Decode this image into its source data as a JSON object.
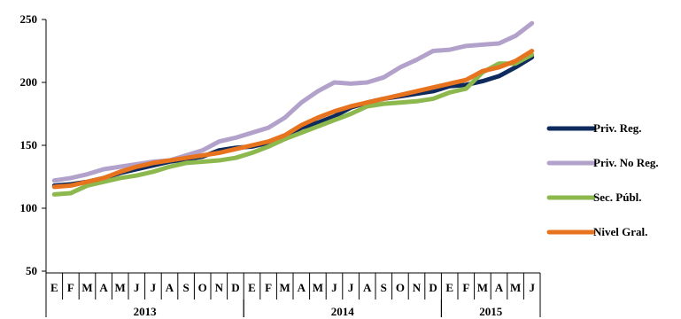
{
  "chart_data": {
    "type": "line",
    "title": "",
    "xlabel": "",
    "ylabel": "",
    "ylim": [
      50,
      250
    ],
    "yticks": [
      "50",
      "100",
      "150",
      "200",
      "250"
    ],
    "grid": false,
    "legend_position": "right",
    "month_labels": [
      "E",
      "F",
      "M",
      "A",
      "M",
      "J",
      "J",
      "A",
      "S",
      "O",
      "N",
      "D",
      "E",
      "F",
      "M",
      "A",
      "M",
      "J",
      "J",
      "A",
      "S",
      "O",
      "N",
      "D",
      "E",
      "F",
      "M",
      "A",
      "M",
      "J"
    ],
    "years": [
      {
        "label": "2013",
        "start": 0,
        "end": 11
      },
      {
        "label": "2014",
        "start": 12,
        "end": 23
      },
      {
        "label": "2015",
        "start": 24,
        "end": 29
      }
    ],
    "series": [
      {
        "name": "Priv. Reg.",
        "color": "#0f2a5c",
        "values": [
          118,
          119,
          121,
          124,
          128,
          131,
          134,
          137,
          139,
          141,
          146,
          148,
          149,
          152,
          157,
          164,
          168,
          173,
          180,
          184,
          187,
          189,
          191,
          193,
          197,
          198,
          201,
          205,
          212,
          220
        ]
      },
      {
        "name": "Priv. No Reg.",
        "color": "#b2a2cb",
        "values": [
          122,
          124,
          127,
          131,
          133,
          135,
          137,
          138,
          142,
          146,
          153,
          156,
          160,
          164,
          172,
          184,
          193,
          200,
          199,
          200,
          204,
          212,
          218,
          225,
          226,
          229,
          230,
          231,
          237,
          247
        ]
      },
      {
        "name": "Sec. Públ.",
        "color": "#8cb84e",
        "values": [
          111,
          112,
          118,
          121,
          124,
          126,
          129,
          133,
          136,
          137,
          138,
          140,
          144,
          149,
          155,
          160,
          165,
          170,
          175,
          181,
          183,
          184,
          185,
          187,
          192,
          195,
          208,
          215,
          215,
          222
        ]
      },
      {
        "name": "Nivel Gral.",
        "color": "#e8731e",
        "values": [
          117,
          118,
          121,
          124,
          129,
          133,
          136,
          138,
          140,
          142,
          144,
          147,
          150,
          153,
          158,
          166,
          172,
          177,
          181,
          184,
          187,
          190,
          193,
          196,
          199,
          202,
          209,
          212,
          217,
          225
        ]
      }
    ]
  }
}
